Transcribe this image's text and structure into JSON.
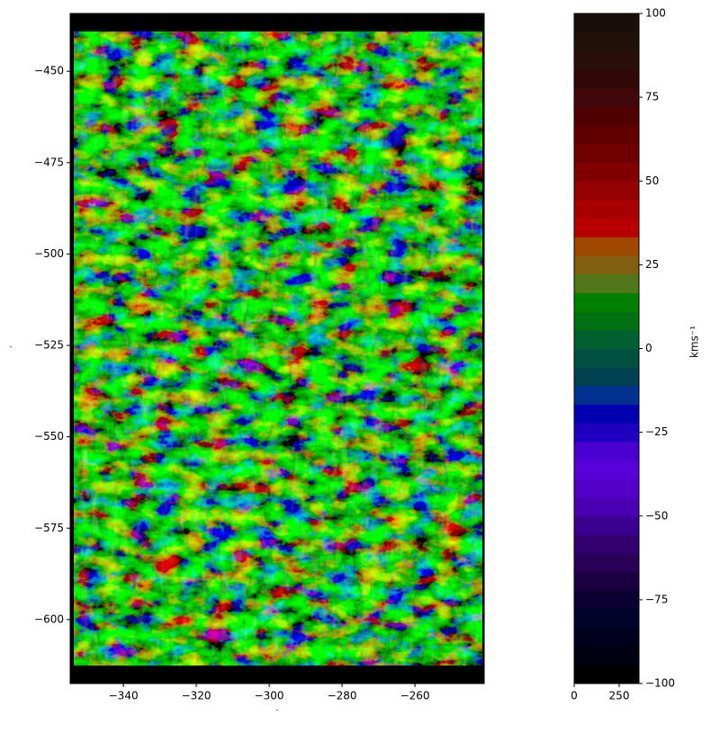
{
  "chart_data": {
    "type": "image",
    "xlabel": "″",
    "ylabel": "″",
    "xlim": [
      -354.6,
      -241
    ],
    "ylim": [
      -617.5,
      -434.2
    ],
    "xticks": [
      {
        "value": -340,
        "label": "−340"
      },
      {
        "value": -320,
        "label": "−320"
      },
      {
        "value": -300,
        "label": "−300"
      },
      {
        "value": -280,
        "label": "−280"
      },
      {
        "value": -260,
        "label": "−260"
      }
    ],
    "yticks": [
      {
        "value": -450,
        "label": "−450"
      },
      {
        "value": -475,
        "label": "−475"
      },
      {
        "value": -500,
        "label": "−500"
      },
      {
        "value": -525,
        "label": "−525"
      },
      {
        "value": -550,
        "label": "−550"
      },
      {
        "value": -575,
        "label": "−575"
      },
      {
        "value": -600,
        "label": "−600"
      }
    ],
    "colorbar": {
      "label": "kms⁻¹",
      "clim": [
        -100,
        100
      ],
      "cticks": [
        {
          "value": -100,
          "label": "−100"
        },
        {
          "value": -75,
          "label": "−75"
        },
        {
          "value": -50,
          "label": "−50"
        },
        {
          "value": -25,
          "label": "−25"
        },
        0,
        25,
        50,
        75,
        100
      ],
      "xlim": [
        0,
        360
      ],
      "xticks": [
        0,
        250
      ],
      "colors": [
        "#000000",
        "#000010",
        "#00001c",
        "#000428",
        "#0a0030",
        "#1a0040",
        "#280055",
        "#330070",
        "#3a0090",
        "#4a00b0",
        "#5500c8",
        "#5a00d8",
        "#4a00d0",
        "#2000c0",
        "#0000b0",
        "#003090",
        "#004050",
        "#005040",
        "#006030",
        "#007010",
        "#008000",
        "#507818",
        "#806010",
        "#a04800",
        "#b80000",
        "#a80000",
        "#950000",
        "#800000",
        "#700000",
        "#600000",
        "#500000",
        "#400808",
        "#300808",
        "#281008",
        "#201008",
        "#181008"
      ]
    }
  }
}
